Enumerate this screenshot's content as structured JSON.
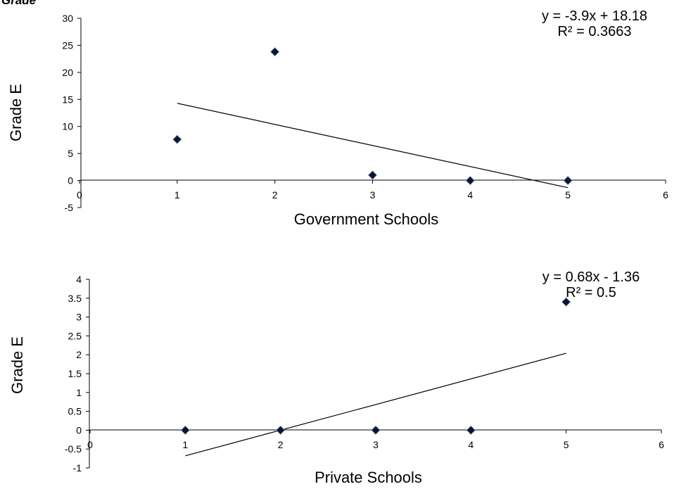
{
  "corner_label": "Grade",
  "chart_data": [
    {
      "type": "scatter",
      "title": "",
      "xlabel": "Government Schools",
      "ylabel": "Grade E",
      "xlim": [
        0,
        6
      ],
      "ylim": [
        -5,
        30
      ],
      "xticks": [
        0,
        1,
        2,
        3,
        4,
        5,
        6
      ],
      "yticks": [
        -5,
        0,
        5,
        10,
        15,
        20,
        25,
        30
      ],
      "grid": false,
      "marker": "diamond",
      "points": [
        {
          "x": 1,
          "y": 7.6
        },
        {
          "x": 2,
          "y": 23.8
        },
        {
          "x": 3,
          "y": 1.0
        },
        {
          "x": 4,
          "y": 0
        },
        {
          "x": 5,
          "y": 0
        }
      ],
      "trendline": {
        "type": "linear",
        "slope": -3.9,
        "intercept": 18.18,
        "x_range": [
          1,
          5
        ]
      },
      "equation": "y = -3.9x + 18.18",
      "r_squared": "R² = 0.3663"
    },
    {
      "type": "scatter",
      "title": "",
      "xlabel": "Private Schools",
      "ylabel": "Grade E",
      "xlim": [
        0,
        6
      ],
      "ylim": [
        -1,
        4
      ],
      "xticks": [
        0,
        1,
        2,
        3,
        4,
        5,
        6
      ],
      "yticks": [
        -1,
        -0.5,
        0,
        0.5,
        1,
        1.5,
        2,
        2.5,
        3,
        3.5,
        4
      ],
      "grid": false,
      "marker": "diamond",
      "points": [
        {
          "x": 1,
          "y": 0
        },
        {
          "x": 2,
          "y": 0
        },
        {
          "x": 3,
          "y": 0
        },
        {
          "x": 4,
          "y": 0
        },
        {
          "x": 5,
          "y": 3.4
        }
      ],
      "trendline": {
        "type": "linear",
        "slope": 0.68,
        "intercept": -1.36,
        "x_range": [
          1,
          5
        ]
      },
      "equation": "y = 0.68x - 1.36",
      "r_squared": "R² = 0.5"
    }
  ]
}
